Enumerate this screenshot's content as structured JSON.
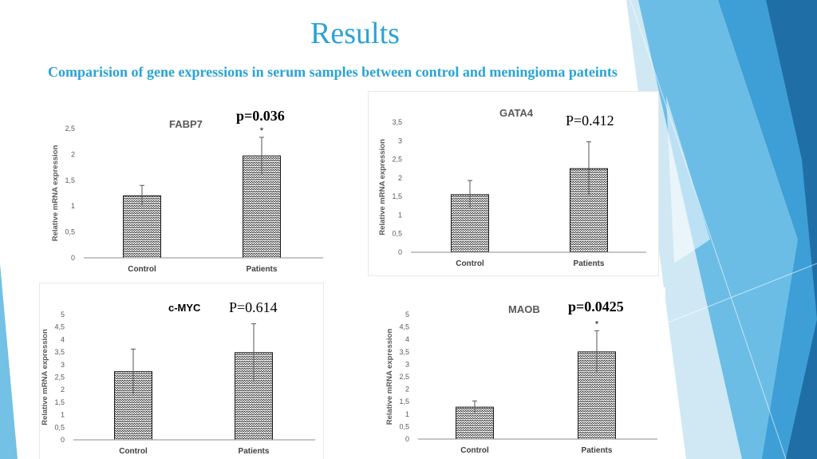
{
  "slide": {
    "title": "Results",
    "subtitle": "Comparision of gene expressions in serum samples between control and meningioma pateints"
  },
  "colors": {
    "accent": "#2aa3d4",
    "deco_blue": "#3d9fd6",
    "deco_dark": "#1f6fa6",
    "bar_border": "#1a1a1a",
    "axis": "#8c8c8c",
    "chart_title_gray": "#595959"
  },
  "chart_data": [
    {
      "type": "bar",
      "title": "FABP7",
      "p_value": "p=0.036",
      "ylabel": "Relative mRNA expression",
      "categories": [
        "Control",
        "Patients"
      ],
      "values": [
        1.2,
        1.97
      ],
      "errors": [
        0.2,
        0.36
      ],
      "ylim": [
        0,
        2.5
      ],
      "yticks": [
        "0",
        "0,5",
        "1",
        "1,5",
        "2",
        "2,5"
      ],
      "significance": [
        "",
        "*"
      ]
    },
    {
      "type": "bar",
      "title": "GATA4",
      "p_value": "P=0.412",
      "ylabel": "Relative mRNA expression",
      "categories": [
        "Control",
        "Patients"
      ],
      "values": [
        1.55,
        2.25
      ],
      "errors": [
        0.38,
        0.72
      ],
      "ylim": [
        0,
        3.5
      ],
      "yticks": [
        "0",
        "0,5",
        "1",
        "1,5",
        "2",
        "2,5",
        "3",
        "3,5"
      ],
      "significance": [
        "",
        ""
      ]
    },
    {
      "type": "bar",
      "title": "c-MYC",
      "p_value": "P=0.614",
      "ylabel": "Relative mRNA expression",
      "categories": [
        "Control",
        "Patients"
      ],
      "values": [
        2.72,
        3.48
      ],
      "errors": [
        0.9,
        1.15
      ],
      "ylim": [
        0,
        5
      ],
      "yticks": [
        "0",
        "0,5",
        "1",
        "1,5",
        "2",
        "2,5",
        "3",
        "3,5",
        "4",
        "4,5",
        "5"
      ],
      "significance": [
        "",
        ""
      ]
    },
    {
      "type": "bar",
      "title": "MAOB",
      "p_value": "p=0.0425",
      "ylabel": "Relative mRNA expression",
      "categories": [
        "Control",
        "Patients"
      ],
      "values": [
        1.28,
        3.5
      ],
      "errors": [
        0.25,
        0.85
      ],
      "ylim": [
        0,
        5
      ],
      "yticks": [
        "0",
        "0,5",
        "1",
        "1,5",
        "2",
        "2,5",
        "3",
        "3,5",
        "4",
        "4,5",
        "5"
      ],
      "significance": [
        "",
        "*"
      ]
    }
  ]
}
